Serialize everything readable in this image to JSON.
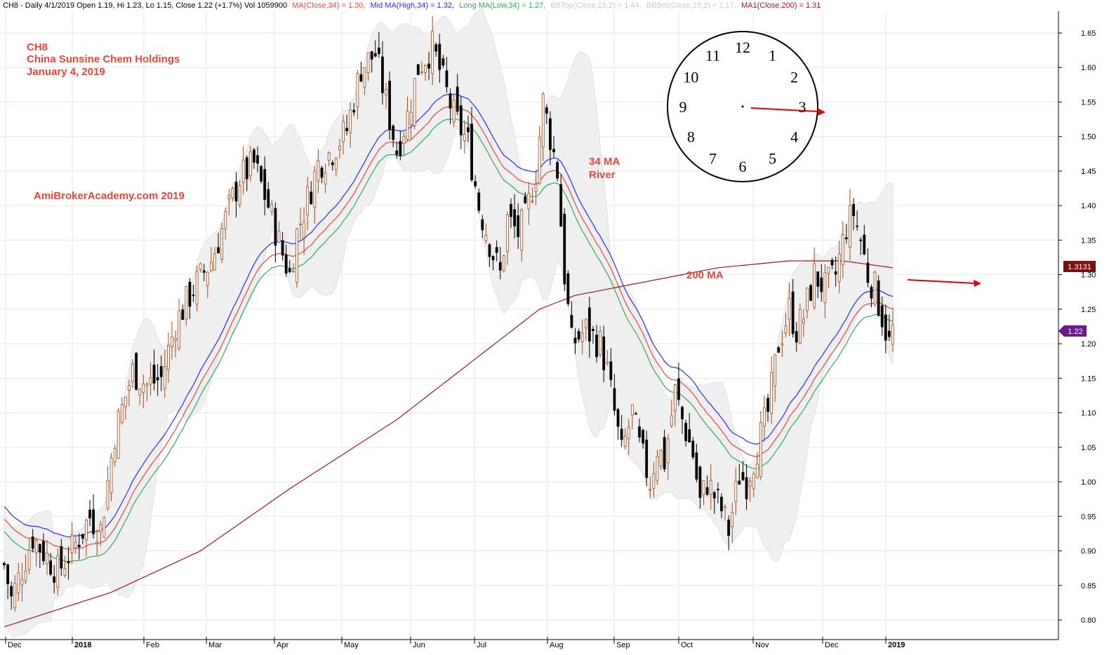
{
  "header": {
    "ticker_info": "CH8 - Daily 4/1/2019 Open 1.19, Hi 1.23, Lo 1.15, Close 1.22 (+1.7%) Vol 1059900",
    "ma34": "MA(Close,34) = 1.30,",
    "mid_ma": "Mid MA(High,34) = 1.32,",
    "long_ma": "Long MA(Low,34) = 1.27,",
    "bbtop": "BBTop(Close,15,2) = 1.44,",
    "bbbot": "BBBot(Close,15,2) = 1.17,",
    "ma200": "MA1(Close,200) = 1.31"
  },
  "colors": {
    "ma34": "#e8453c",
    "mid_ma": "#2a2ae8",
    "long_ma": "#2fa85a",
    "ma200": "#a21818",
    "bb_fill": "#efefef",
    "bb_text": "#c8c8c8",
    "candle_up": "#a04818",
    "candle_down": "#000000",
    "annotation": "#e8453c",
    "price_tag_close": "#6a1a8a",
    "price_tag_ma": "#7a1010"
  },
  "annotations": {
    "ticker": "CH8",
    "company": "China Sunsine Chem Holdings",
    "date": "January 4, 2019",
    "watermark": "AmiBrokerAcademy.com  2019",
    "river_line1": "34 MA",
    "river_line2": "River",
    "ma200_label": "200 MA"
  },
  "price_tags": {
    "ma200": "1.3131",
    "close": "1.22"
  },
  "clock": {
    "numbers": [
      "12",
      "1",
      "2",
      "3",
      "4",
      "5",
      "6",
      "7",
      "8",
      "9",
      "10",
      "11"
    ]
  },
  "chart_data": {
    "type": "candlestick",
    "title": "",
    "xlabel": "",
    "ylabel": "",
    "ylim": [
      0.78,
      1.67
    ],
    "y_ticks": [
      "0.80",
      "0.85",
      "0.90",
      "0.95",
      "1.00",
      "1.05",
      "1.10",
      "1.15",
      "1.20",
      "1.25",
      "1.30",
      "1.35",
      "1.40",
      "1.45",
      "1.50",
      "1.55",
      "1.60",
      "1.65"
    ],
    "x_ticks": [
      "Dec",
      "2018",
      "Feb",
      "Mar",
      "Apr",
      "May",
      "Jun",
      "Jul",
      "Aug",
      "Sep",
      "Oct",
      "Nov",
      "Dec",
      "2019"
    ],
    "x_tick_bold": [
      false,
      true,
      false,
      false,
      false,
      false,
      false,
      false,
      false,
      false,
      false,
      false,
      false,
      true
    ],
    "grid": true,
    "price_anchors": [
      [
        0,
        0.88
      ],
      [
        2,
        0.83
      ],
      [
        8,
        0.92
      ],
      [
        15,
        0.87
      ],
      [
        20,
        0.91
      ],
      [
        24,
        0.95
      ],
      [
        27,
        0.93
      ],
      [
        31,
        1.07
      ],
      [
        36,
        1.16
      ],
      [
        40,
        1.14
      ],
      [
        44,
        1.15
      ],
      [
        48,
        1.23
      ],
      [
        53,
        1.28
      ],
      [
        58,
        1.32
      ],
      [
        62,
        1.38
      ],
      [
        66,
        1.44
      ],
      [
        70,
        1.46
      ],
      [
        74,
        1.4
      ],
      [
        78,
        1.33
      ],
      [
        80,
        1.3
      ],
      [
        82,
        1.36
      ],
      [
        88,
        1.46
      ],
      [
        92,
        1.48
      ],
      [
        96,
        1.51
      ],
      [
        100,
        1.6
      ],
      [
        104,
        1.62
      ],
      [
        107,
        1.55
      ],
      [
        110,
        1.48
      ],
      [
        113,
        1.53
      ],
      [
        116,
        1.6
      ],
      [
        120,
        1.63
      ],
      [
        123,
        1.58
      ],
      [
        126,
        1.53
      ],
      [
        130,
        1.49
      ],
      [
        133,
        1.4
      ],
      [
        137,
        1.33
      ],
      [
        139,
        1.3
      ],
      [
        141,
        1.38
      ],
      [
        144,
        1.36
      ],
      [
        146,
        1.38
      ],
      [
        149,
        1.45
      ],
      [
        151,
        1.55
      ],
      [
        153,
        1.5
      ],
      [
        155,
        1.45
      ],
      [
        157,
        1.3
      ],
      [
        159,
        1.2
      ],
      [
        163,
        1.22
      ],
      [
        167,
        1.2
      ],
      [
        169,
        1.16
      ],
      [
        171,
        1.1
      ],
      [
        173,
        1.04
      ],
      [
        176,
        1.1
      ],
      [
        178,
        1.05
      ],
      [
        181,
        1.0
      ],
      [
        183,
        1.05
      ],
      [
        185,
        1.03
      ],
      [
        188,
        1.13
      ],
      [
        190,
        1.09
      ],
      [
        193,
        1.04
      ],
      [
        195,
        0.97
      ],
      [
        197,
        1.0
      ],
      [
        199,
        0.98
      ],
      [
        201,
        0.96
      ],
      [
        203,
        0.93
      ],
      [
        206,
        1.01
      ],
      [
        208,
        1.0
      ],
      [
        211,
        1.05
      ],
      [
        214,
        1.1
      ],
      [
        217,
        1.2
      ],
      [
        220,
        1.25
      ],
      [
        222,
        1.22
      ],
      [
        224,
        1.24
      ],
      [
        227,
        1.3
      ],
      [
        230,
        1.28
      ],
      [
        233,
        1.3
      ],
      [
        236,
        1.37
      ],
      [
        238,
        1.39
      ],
      [
        240,
        1.35
      ],
      [
        242,
        1.3
      ],
      [
        244,
        1.28
      ],
      [
        246,
        1.24
      ],
      [
        248,
        1.2
      ],
      [
        249,
        1.22
      ]
    ],
    "ma200_anchors": [
      [
        0,
        0.79
      ],
      [
        30,
        0.84
      ],
      [
        55,
        0.9
      ],
      [
        80,
        0.99
      ],
      [
        110,
        1.09
      ],
      [
        130,
        1.17
      ],
      [
        150,
        1.25
      ],
      [
        160,
        1.27
      ],
      [
        180,
        1.29
      ],
      [
        200,
        1.31
      ],
      [
        220,
        1.32
      ],
      [
        235,
        1.32
      ],
      [
        249,
        1.31
      ]
    ],
    "ma34_start": 0.95,
    "bb_start_width": 0.08,
    "bars": 250
  }
}
